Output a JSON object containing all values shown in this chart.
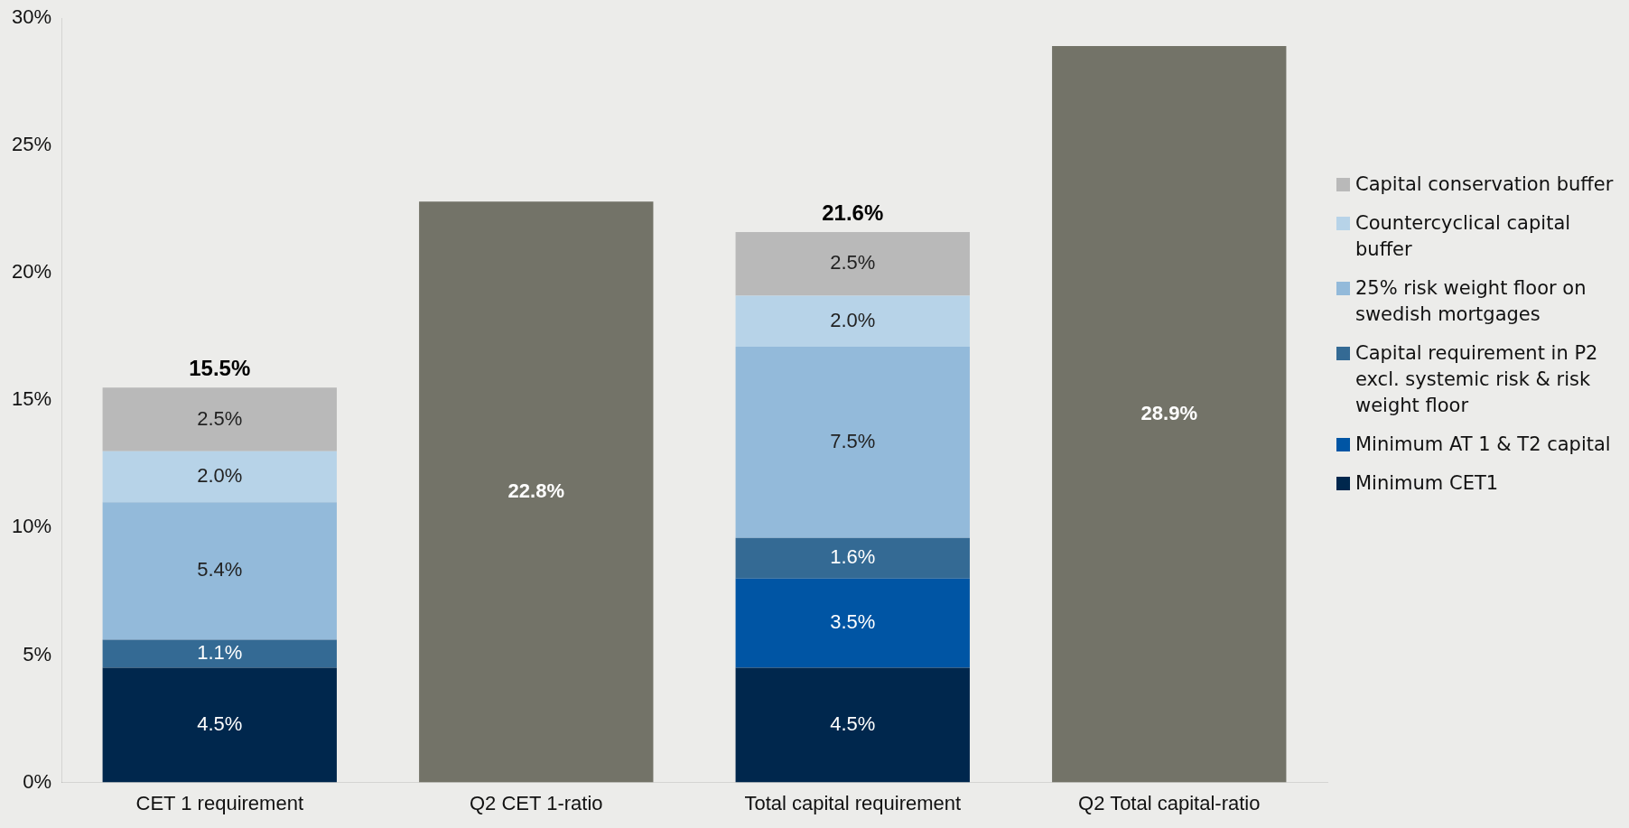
{
  "chart_data": {
    "type": "bar",
    "stacked": true,
    "categories": [
      "CET 1 requirement",
      "Q2 CET 1-ratio",
      "Total capital requirement",
      "Q2 Total capital-ratio"
    ],
    "series": [
      {
        "name": "Minimum CET1",
        "color": "#00274d",
        "values": [
          4.5,
          null,
          4.5,
          null
        ],
        "value_labels": [
          "4.5%",
          null,
          "4.5%",
          null
        ]
      },
      {
        "name": "Minimum AT 1 &  T2 capital",
        "color": "#0055a4",
        "values": [
          null,
          null,
          3.5,
          null
        ],
        "value_labels": [
          null,
          null,
          "3.5%",
          null
        ]
      },
      {
        "name": "Capital requirement in P2 excl. systemic risk & risk weight floor",
        "color": "#346a94",
        "values": [
          1.1,
          null,
          1.6,
          null
        ],
        "value_labels": [
          "1.1%",
          null,
          "1.6%",
          null
        ]
      },
      {
        "name": "25% risk weight floor on swedish mortgages",
        "color": "#93bada",
        "values": [
          5.4,
          null,
          7.5,
          null
        ],
        "value_labels": [
          "5.4%",
          null,
          "7.5%",
          null
        ]
      },
      {
        "name": "Countercyclical capital buffer",
        "color": "#b7d3e8",
        "values": [
          2.0,
          null,
          2.0,
          null
        ],
        "value_labels": [
          "2.0%",
          null,
          "2.0%",
          null
        ]
      },
      {
        "name": "Capital conservation buffer",
        "color": "#b9b9b9",
        "values": [
          2.5,
          null,
          2.5,
          null
        ],
        "value_labels": [
          "2.5%",
          null,
          "2.5%",
          null
        ]
      },
      {
        "color": "#737368",
        "values": [
          null,
          22.8,
          null,
          28.9
        ],
        "value_labels": [
          null,
          "22.8%",
          null,
          "28.9%"
        ]
      }
    ],
    "totals": [
      "15.5%",
      null,
      "21.6%",
      null
    ],
    "ylim": [
      0,
      30
    ],
    "yticks": [
      {
        "value": 0,
        "label": "0%"
      },
      {
        "value": 5,
        "label": "5%"
      },
      {
        "value": 10,
        "label": "10%"
      },
      {
        "value": 15,
        "label": "15%"
      },
      {
        "value": 20,
        "label": "20%"
      },
      {
        "value": 25,
        "label": "25%"
      },
      {
        "value": 30,
        "label": "30%"
      }
    ],
    "grid": false,
    "legend": "right"
  }
}
